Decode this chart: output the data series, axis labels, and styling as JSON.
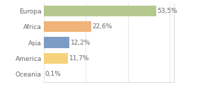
{
  "categories": [
    "Europa",
    "Africa",
    "Asia",
    "America",
    "Oceania"
  ],
  "values": [
    53.5,
    22.6,
    12.2,
    11.7,
    0.1
  ],
  "labels": [
    "53,5%",
    "22,6%",
    "12,2%",
    "11,7%",
    "0,1%"
  ],
  "colors": [
    "#b5c98e",
    "#f0b47a",
    "#7b9dc4",
    "#f5d37a",
    "#ffffff"
  ],
  "background_color": "#ffffff",
  "bar_height": 0.68,
  "xlim": [
    0,
    62
  ],
  "label_fontsize": 6.5,
  "tick_fontsize": 6.5,
  "figsize": [
    2.8,
    1.2
  ],
  "dpi": 100
}
